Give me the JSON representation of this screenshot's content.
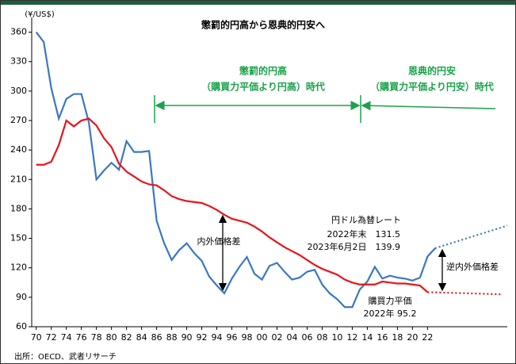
{
  "chart_data": {
    "type": "line",
    "title": "懲罰的円高から恩典的円安へ",
    "y_unit": "(¥/US$)",
    "source": "出所：OECD、武者リサーチ",
    "xlim": [
      1969.4,
      2032.6
    ],
    "ylim": [
      60,
      375
    ],
    "yticks": [
      60,
      90,
      120,
      150,
      180,
      210,
      240,
      270,
      300,
      330,
      360
    ],
    "xticks": [
      {
        "value": 1970,
        "label": "70"
      },
      {
        "value": 1972,
        "label": "72"
      },
      {
        "value": 1974,
        "label": "74"
      },
      {
        "value": 1976,
        "label": "76"
      },
      {
        "value": 1978,
        "label": "78"
      },
      {
        "value": 1980,
        "label": "80"
      },
      {
        "value": 1982,
        "label": "82"
      },
      {
        "value": 1984,
        "label": "84"
      },
      {
        "value": 1986,
        "label": "86"
      },
      {
        "value": 1988,
        "label": "88"
      },
      {
        "value": 1990,
        "label": "90"
      },
      {
        "value": 1992,
        "label": "92"
      },
      {
        "value": 1994,
        "label": "94"
      },
      {
        "value": 1996,
        "label": "96"
      },
      {
        "value": 1998,
        "label": "98"
      },
      {
        "value": 2000,
        "label": "00"
      },
      {
        "value": 2002,
        "label": "02"
      },
      {
        "value": 2004,
        "label": "04"
      },
      {
        "value": 2006,
        "label": "06"
      },
      {
        "value": 2008,
        "label": "08"
      },
      {
        "value": 2010,
        "label": "10"
      },
      {
        "value": 2012,
        "label": "12"
      },
      {
        "value": 2014,
        "label": "14"
      },
      {
        "value": 2016,
        "label": "16"
      },
      {
        "value": 2018,
        "label": "18"
      },
      {
        "value": 2020,
        "label": "20"
      },
      {
        "value": 2022,
        "label": "22"
      }
    ],
    "series": [
      {
        "color": "#3a78c2",
        "x": [
          1970,
          1971,
          1972,
          1973,
          1974,
          1975,
          1976,
          1977,
          1978,
          1979,
          1980,
          1981,
          1982,
          1983,
          1984,
          1985,
          1986,
          1987,
          1988,
          1989,
          1990,
          1991,
          1992,
          1993,
          1994,
          1995,
          1996,
          1997,
          1998,
          1999,
          2000,
          2001,
          2002,
          2003,
          2004,
          2005,
          2006,
          2007,
          2008,
          2009,
          2010,
          2011,
          2012,
          2013,
          2014,
          2015,
          2016,
          2017,
          2018,
          2019,
          2020,
          2021,
          2022,
          2023
        ],
        "values": [
          360,
          350,
          303,
          272,
          292,
          297,
          297,
          268,
          210,
          219,
          227,
          220,
          249,
          238,
          238,
          239,
          168,
          145,
          128,
          138,
          145,
          135,
          127,
          111,
          102,
          94,
          109,
          121,
          131,
          114,
          108,
          122,
          125,
          116,
          108,
          110,
          116,
          118,
          103,
          94,
          88,
          80,
          80,
          98,
          106,
          121,
          109,
          112,
          110,
          109,
          107,
          110,
          131.5,
          139.9
        ]
      },
      {
        "color": "#e8141b",
        "x": [
          1970,
          1971,
          1972,
          1973,
          1974,
          1975,
          1976,
          1977,
          1978,
          1979,
          1980,
          1981,
          1982,
          1983,
          1984,
          1985,
          1986,
          1987,
          1988,
          1989,
          1990,
          1991,
          1992,
          1993,
          1994,
          1995,
          1996,
          1997,
          1998,
          1999,
          2000,
          2001,
          2002,
          2003,
          2004,
          2005,
          2006,
          2007,
          2008,
          2009,
          2010,
          2011,
          2012,
          2013,
          2014,
          2015,
          2016,
          2017,
          2018,
          2019,
          2020,
          2021,
          2022
        ],
        "values": [
          225,
          225,
          228,
          245,
          270,
          264,
          270,
          272,
          265,
          252,
          243,
          226,
          218,
          213,
          208,
          205,
          204,
          199,
          193,
          190,
          188,
          187,
          186,
          183,
          179,
          174,
          170,
          168,
          166,
          162,
          157,
          151,
          146,
          141,
          137,
          133,
          128,
          123,
          119,
          116,
          113,
          108,
          105,
          103,
          103,
          103,
          106,
          105,
          104,
          104,
          103,
          102,
          95.2
        ]
      }
    ],
    "projections": [
      {
        "color": "#3a78c2",
        "x": [
          2023,
          2032.6
        ],
        "values": [
          139.9,
          163
        ]
      },
      {
        "color": "#e8141b",
        "x": [
          2022,
          2032
        ],
        "values": [
          95.2,
          93
        ]
      }
    ],
    "annotations": [
      "懲罰的円高",
      "（購買力平価より円高）時代",
      "恩典的円安",
      "（購買力平価より円安）時代",
      "内外価格差",
      "円ドル為替レート",
      "2022年末　131.5",
      "2023年6月2日　139.9",
      "購買力平価",
      "2022年 95.2",
      "逆内外価格差"
    ]
  }
}
